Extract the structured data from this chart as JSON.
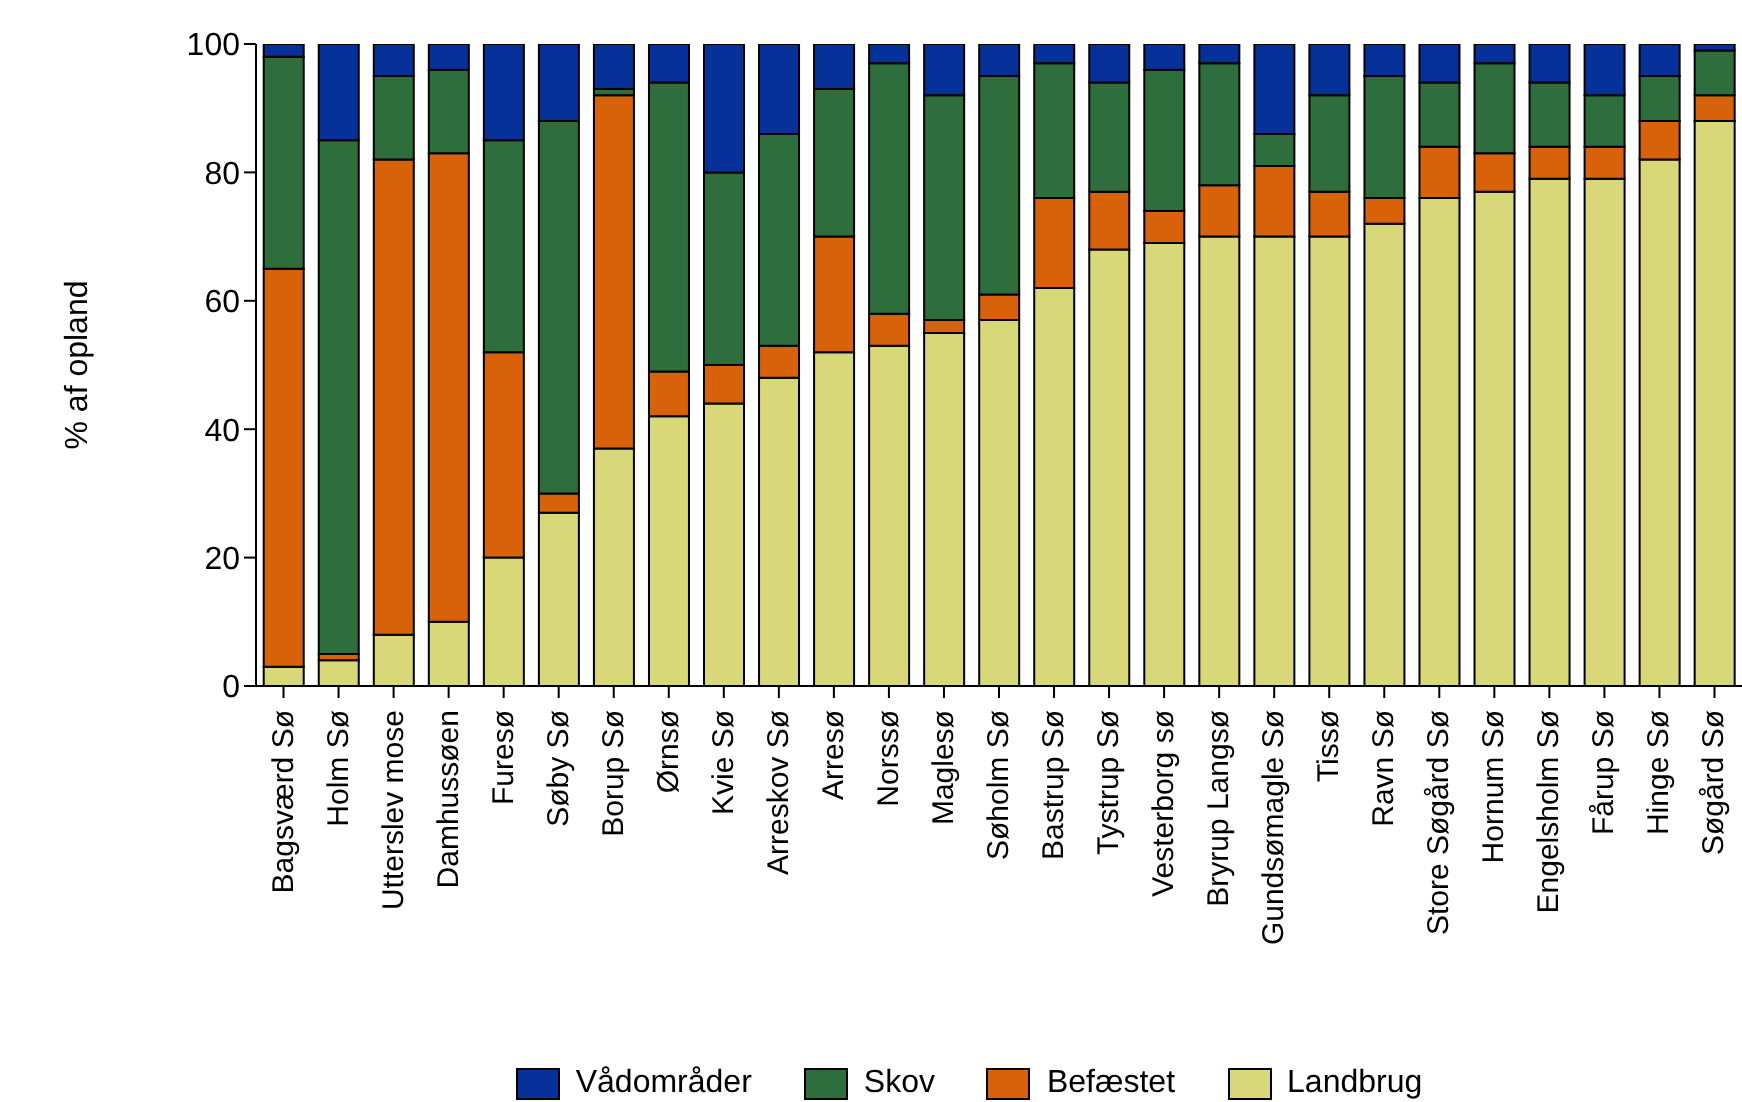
{
  "chart_data": {
    "type": "bar",
    "stacked": true,
    "ylabel": "% af opland",
    "categories": [
      "Bagsværd Sø",
      "Holm Sø",
      "Utterslev mose",
      "Damhussøen",
      "Furesø",
      "Søby Sø",
      "Borup Sø",
      "Ørnsø",
      "Kvie Sø",
      "Arreskov Sø",
      "Arresø",
      "Norssø",
      "Maglesø",
      "Søholm Sø",
      "Bastrup Sø",
      "Tystrup Sø",
      "Vesterborg sø",
      "Bryrup Langsø",
      "Gundsømagle Sø",
      "Tissø",
      "Ravn Sø",
      "Store Søgård Sø",
      "Hornum Sø",
      "Engelsholm Sø",
      "Fårup Sø",
      "Hinge Sø",
      "Søgård Sø"
    ],
    "series": [
      {
        "name": "Landbrug",
        "color": "#d8d87a",
        "values": [
          3,
          4,
          8,
          10,
          20,
          27,
          37,
          42,
          44,
          48,
          52,
          53,
          55,
          57,
          62,
          68,
          69,
          70,
          70,
          70,
          72,
          76,
          77,
          79,
          79,
          82,
          88
        ]
      },
      {
        "name": "Befæstet",
        "color": "#d8620a",
        "values": [
          62,
          1,
          74,
          73,
          32,
          3,
          55,
          7,
          6,
          5,
          18,
          5,
          2,
          4,
          14,
          9,
          5,
          8,
          11,
          7,
          4,
          8,
          6,
          5,
          5,
          6,
          4
        ]
      },
      {
        "name": "Skov",
        "color": "#2e6e3c",
        "values": [
          33,
          80,
          13,
          13,
          33,
          58,
          1,
          45,
          30,
          33,
          23,
          39,
          35,
          34,
          21,
          17,
          22,
          19,
          5,
          15,
          19,
          10,
          14,
          10,
          8,
          7,
          7
        ]
      },
      {
        "name": "Vådområder",
        "color": "#063198",
        "values": [
          2,
          15,
          5,
          4,
          15,
          12,
          7,
          6,
          20,
          14,
          7,
          3,
          8,
          5,
          3,
          6,
          4,
          3,
          14,
          8,
          5,
          6,
          3,
          6,
          8,
          5,
          1
        ]
      }
    ],
    "ylim": [
      0,
      100
    ],
    "yticks": [
      0,
      20,
      40,
      60,
      80,
      100
    ],
    "legend": "bottom"
  }
}
